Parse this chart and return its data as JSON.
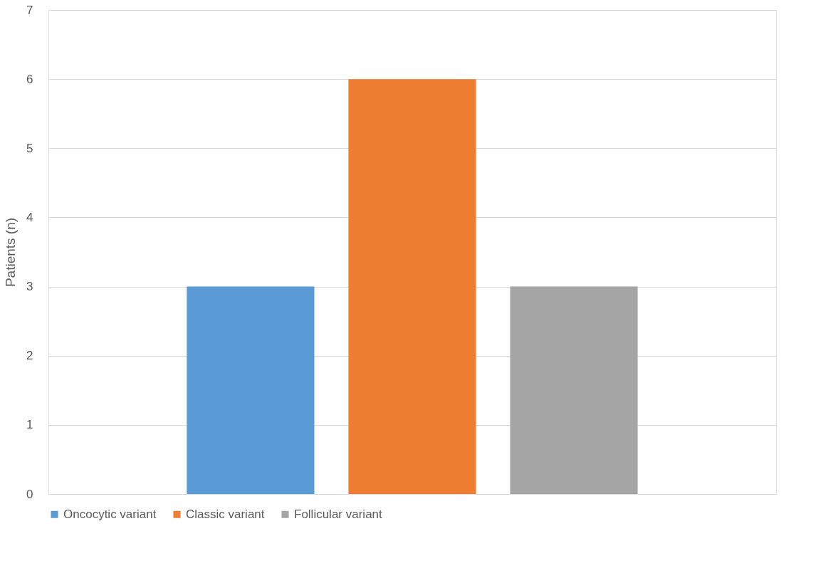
{
  "chart_data": {
    "type": "bar",
    "ylabel": "Patients (n)",
    "categories": [
      null
    ],
    "series": [
      {
        "name": "Oncocytic variant",
        "color": "#5b9bd5",
        "values": [
          3
        ]
      },
      {
        "name": "Classic variant",
        "color": "#ed7d31",
        "values": [
          6
        ]
      },
      {
        "name": "Follicular variant",
        "color": "#a5a5a5",
        "values": [
          3
        ]
      }
    ],
    "ylim": [
      0,
      7
    ],
    "yticks": [
      0,
      1,
      2,
      3,
      4,
      5,
      6,
      7
    ],
    "grid": "y",
    "legend": "bottom"
  }
}
